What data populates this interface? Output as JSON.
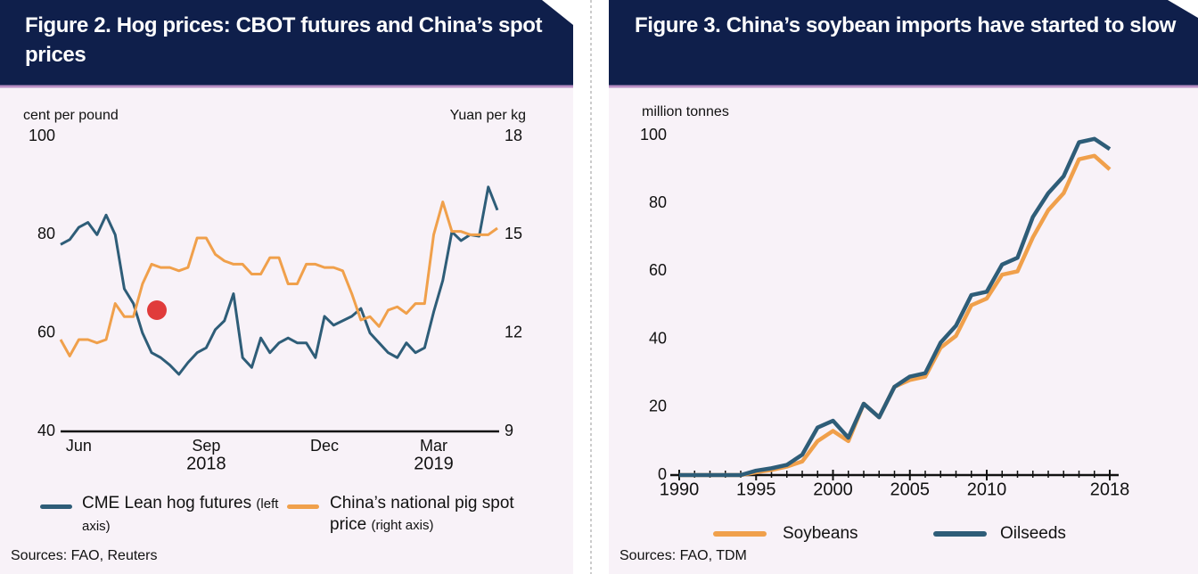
{
  "chart_data": [
    {
      "type": "line",
      "title": "Figure 2. Hog prices: CBOT futures and China’s spot prices",
      "ylabel": "cent per pound",
      "y2label": "Yuan per kg",
      "categories": [
        null,
        null,
        "Jun",
        null,
        null,
        null,
        null,
        null,
        null,
        null,
        null,
        null,
        null,
        null,
        null,
        null,
        "Sep",
        null,
        null,
        null,
        null,
        null,
        null,
        null,
        null,
        null,
        null,
        null,
        null,
        "Dec",
        null,
        null,
        null,
        null,
        null,
        null,
        null,
        null,
        null,
        null,
        null,
        "Mar",
        null,
        null,
        null,
        null,
        null,
        null,
        null
      ],
      "category_years": [
        null,
        null,
        null,
        null,
        null,
        null,
        null,
        null,
        null,
        null,
        null,
        null,
        null,
        null,
        null,
        null,
        "2018",
        null,
        null,
        null,
        null,
        null,
        null,
        null,
        null,
        null,
        null,
        null,
        null,
        null,
        null,
        null,
        null,
        null,
        null,
        null,
        null,
        null,
        null,
        null,
        null,
        "2019",
        null,
        null,
        null,
        null,
        null,
        null,
        null
      ],
      "ylim": [
        40,
        100
      ],
      "yticks": [
        40,
        60,
        80,
        100
      ],
      "y2lim": [
        9,
        18
      ],
      "y2ticks": [
        9,
        12,
        15,
        18
      ],
      "grid": false,
      "series": [
        {
          "name": "CME Lean hog futures",
          "note": "(left axis)",
          "color": "#2e5d78",
          "values": [
            78,
            79,
            81.5,
            82.5,
            80,
            84,
            80,
            69,
            66,
            60,
            56,
            55,
            53.5,
            51.6,
            54,
            56,
            57,
            60.7,
            62.5,
            68,
            55,
            53,
            59,
            56,
            58,
            59,
            58,
            58,
            55,
            63.4,
            61.6,
            62.5,
            63.4,
            65,
            60,
            58,
            56,
            55,
            58,
            56,
            57,
            64.3,
            70.7,
            80.6,
            78.8,
            80,
            79.7,
            89.7,
            85
          ]
        },
        {
          "name": "China’s national pig spot price",
          "note": "(right axis)",
          "color": "#f0a04b",
          "axis": "y2",
          "values": [
            11.8,
            11.3,
            11.8,
            11.8,
            11.7,
            11.8,
            12.9,
            12.5,
            12.5,
            13.5,
            14.1,
            14,
            14,
            13.9,
            14,
            14.9,
            14.9,
            14.4,
            14.2,
            14.1,
            14.1,
            13.8,
            13.8,
            14.3,
            14.3,
            13.5,
            13.5,
            14.1,
            14.1,
            14,
            14,
            13.9,
            13.2,
            12.4,
            12.5,
            12.2,
            12.7,
            12.8,
            12.6,
            12.9,
            12.9,
            15,
            16,
            15.1,
            15.1,
            15,
            15,
            15,
            15.2
          ]
        }
      ],
      "source": "Sources: FAO, Reuters"
    },
    {
      "type": "line",
      "title": "Figure 3. China’s soybean imports have started to slow",
      "ylabel": "million tonnes",
      "x": [
        1990,
        1991,
        1992,
        1993,
        1994,
        1995,
        1996,
        1997,
        1998,
        1999,
        2000,
        2001,
        2002,
        2003,
        2004,
        2005,
        2006,
        2007,
        2008,
        2009,
        2010,
        2011,
        2012,
        2013,
        2014,
        2015,
        2016,
        2017,
        2018
      ],
      "xlim": [
        1990,
        2018
      ],
      "xticks": [
        1990,
        1995,
        2000,
        2005,
        2010,
        2018
      ],
      "xminorticks": [
        1990,
        1991,
        1992,
        1993,
        1994,
        1995,
        1996,
        1997,
        1998,
        1999,
        2000,
        2001,
        2002,
        2003,
        2004,
        2005,
        2006,
        2007,
        2008,
        2009,
        2010,
        2011,
        2012,
        2013,
        2014,
        2015,
        2016,
        2017,
        2018
      ],
      "ylim": [
        0,
        100
      ],
      "yticks": [
        0,
        20,
        40,
        60,
        80,
        100
      ],
      "grid": false,
      "series": [
        {
          "name": "Soybeans",
          "color": "#f0a04b",
          "values": [
            0,
            0,
            0,
            0,
            0,
            0.8,
            1.5,
            2.5,
            4,
            10,
            13,
            10,
            21,
            17,
            26,
            28,
            29,
            37.5,
            41,
            50,
            52,
            59,
            60,
            70,
            78,
            83,
            93,
            94,
            90
          ]
        },
        {
          "name": "Oilseeds",
          "color": "#2e5d78",
          "values": [
            0,
            0,
            0,
            0,
            0,
            1.3,
            2,
            3,
            6,
            14,
            16,
            11,
            21,
            17,
            26,
            29,
            30,
            39,
            44,
            53,
            54,
            62,
            64,
            76,
            83,
            88,
            98,
            99,
            96
          ]
        }
      ],
      "source": "Sources: FAO, TDM"
    }
  ]
}
